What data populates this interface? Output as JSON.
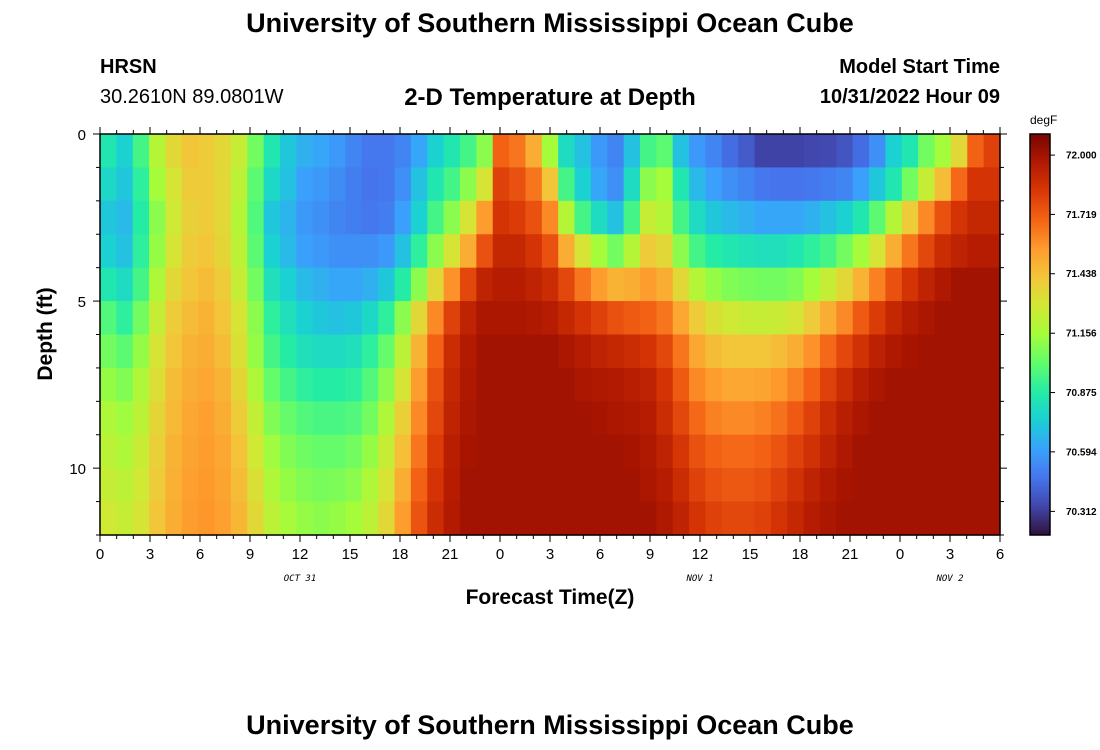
{
  "header": {
    "title": "University of Southern Mississippi Ocean Cube",
    "station": "HRSN",
    "coordinates": "30.2610N  89.0801W",
    "plot_title": "2-D Temperature at Depth",
    "model_start_label": "Model Start Time",
    "model_start_value": "10/31/2022 Hour 09"
  },
  "footer": {
    "title": "University of Southern Mississippi Ocean Cube"
  },
  "chart_data": {
    "type": "heatmap",
    "title": "2-D Temperature at Depth",
    "xlabel": "Forecast Time(Z)",
    "ylabel": "Depth (ft)",
    "x_tick_labels": [
      "0",
      "3",
      "6",
      "9",
      "12",
      "15",
      "18",
      "21",
      "0",
      "3",
      "6",
      "9",
      "12",
      "15",
      "18",
      "21",
      "0",
      "3",
      "6"
    ],
    "date_labels": [
      "OCT 31",
      "NOV 1",
      "NOV 2"
    ],
    "y_tick_labels": [
      "0",
      "5",
      "10"
    ],
    "ylim": [
      0,
      12
    ],
    "colorbar": {
      "unit": "degF",
      "ticks": [
        "72.000",
        "71.719",
        "71.438",
        "71.156",
        "70.875",
        "70.594",
        "70.312"
      ],
      "min": 70.2,
      "max": 72.1,
      "colors": [
        "#30123b",
        "#4145ab",
        "#4675ed",
        "#39a2fc",
        "#1bcfd4",
        "#24eca6",
        "#61fc6c",
        "#a4fc3b",
        "#d1e834",
        "#f3c63a",
        "#fe9b2d",
        "#f36315",
        "#d93806",
        "#b11901",
        "#7a0402"
      ]
    },
    "x_hours": [
      0,
      1,
      2,
      3,
      4,
      5,
      6,
      7,
      8,
      9,
      10,
      11,
      12,
      13,
      14,
      15,
      16,
      17,
      18,
      19,
      20,
      21,
      22,
      23,
      24,
      25,
      26,
      27,
      28,
      29,
      30,
      31,
      32,
      33,
      34,
      35,
      36,
      37,
      38,
      39,
      40,
      41,
      42,
      43,
      44,
      45,
      46,
      47,
      48,
      49,
      50,
      51,
      52,
      53,
      54
    ],
    "depths_ft": [
      0.5,
      1.5,
      2.5,
      3.5,
      4.5,
      5.5,
      6.5,
      7.5,
      8.5,
      9.5,
      10.5,
      11.5
    ],
    "values": [
      [
        70.85,
        70.75,
        70.95,
        71.2,
        71.35,
        71.42,
        71.4,
        71.35,
        71.25,
        71.05,
        70.85,
        70.72,
        70.65,
        70.62,
        70.58,
        70.52,
        70.48,
        70.48,
        70.52,
        70.62,
        70.75,
        70.85,
        70.95,
        71.1,
        71.7,
        71.65,
        71.5,
        71.15,
        70.8,
        70.7,
        70.58,
        70.52,
        70.7,
        70.95,
        71.0,
        70.7,
        70.58,
        70.52,
        70.45,
        70.4,
        70.33,
        70.33,
        70.33,
        70.34,
        70.35,
        70.38,
        70.45,
        70.55,
        70.75,
        70.85,
        71.05,
        71.15,
        71.35,
        71.7,
        71.8
      ],
      [
        70.78,
        70.72,
        70.9,
        71.15,
        71.3,
        71.4,
        71.4,
        71.35,
        71.22,
        71.0,
        70.78,
        70.7,
        70.6,
        70.58,
        70.54,
        70.5,
        70.47,
        70.48,
        70.55,
        70.7,
        70.85,
        70.95,
        71.1,
        71.3,
        71.8,
        71.75,
        71.65,
        71.42,
        70.95,
        70.75,
        70.62,
        70.55,
        70.8,
        71.1,
        71.15,
        70.85,
        70.68,
        70.6,
        70.55,
        70.52,
        70.48,
        70.47,
        70.47,
        70.48,
        70.5,
        70.52,
        70.6,
        70.72,
        70.85,
        71.05,
        71.25,
        71.45,
        71.68,
        71.85,
        71.85
      ],
      [
        70.72,
        70.68,
        70.88,
        71.1,
        71.28,
        71.38,
        71.4,
        71.35,
        71.2,
        70.98,
        70.72,
        70.66,
        70.58,
        70.55,
        70.52,
        70.5,
        70.48,
        70.5,
        70.6,
        70.75,
        70.95,
        71.1,
        71.3,
        71.55,
        71.85,
        71.82,
        71.75,
        71.6,
        71.2,
        70.95,
        70.8,
        70.7,
        70.95,
        71.25,
        71.2,
        70.95,
        70.8,
        70.72,
        70.68,
        70.65,
        70.62,
        70.62,
        70.62,
        70.65,
        70.7,
        70.75,
        70.85,
        71.0,
        71.2,
        71.4,
        71.6,
        71.75,
        71.85,
        71.9,
        71.9
      ],
      [
        70.75,
        70.7,
        70.9,
        71.12,
        71.3,
        71.4,
        71.42,
        71.36,
        71.22,
        71.0,
        70.75,
        70.68,
        70.6,
        70.58,
        70.55,
        70.55,
        70.55,
        70.58,
        70.7,
        70.9,
        71.1,
        71.3,
        71.5,
        71.75,
        71.9,
        71.9,
        71.85,
        71.75,
        71.5,
        71.3,
        71.15,
        71.05,
        71.2,
        71.4,
        71.35,
        71.1,
        70.95,
        70.88,
        70.85,
        70.83,
        70.82,
        70.82,
        70.85,
        70.9,
        70.95,
        71.05,
        71.15,
        71.3,
        71.5,
        71.65,
        71.78,
        71.88,
        71.92,
        71.95,
        71.95
      ],
      [
        70.85,
        70.8,
        70.95,
        71.18,
        71.35,
        71.42,
        71.45,
        71.4,
        71.25,
        71.05,
        70.82,
        70.75,
        70.68,
        70.65,
        70.62,
        70.62,
        70.65,
        70.72,
        70.88,
        71.1,
        71.35,
        71.58,
        71.78,
        71.92,
        71.95,
        71.95,
        71.92,
        71.88,
        71.78,
        71.65,
        71.55,
        71.48,
        71.5,
        71.55,
        71.5,
        71.35,
        71.2,
        71.12,
        71.08,
        71.06,
        71.05,
        71.05,
        71.08,
        71.15,
        71.25,
        71.35,
        71.48,
        71.62,
        71.75,
        71.85,
        71.92,
        71.97,
        72.0,
        72.0,
        72.0
      ],
      [
        70.98,
        70.9,
        71.05,
        71.25,
        71.4,
        71.45,
        71.48,
        71.42,
        71.3,
        71.1,
        70.9,
        70.82,
        70.75,
        70.72,
        70.7,
        70.72,
        70.78,
        70.9,
        71.1,
        71.35,
        71.6,
        71.8,
        71.92,
        71.98,
        71.98,
        71.98,
        71.97,
        71.95,
        71.9,
        71.85,
        71.8,
        71.75,
        71.72,
        71.7,
        71.65,
        71.52,
        71.4,
        71.32,
        71.28,
        71.26,
        71.25,
        71.26,
        71.3,
        71.4,
        71.5,
        71.6,
        71.72,
        71.82,
        71.9,
        71.95,
        71.98,
        72.0,
        72.0,
        72.0,
        72.0
      ],
      [
        71.05,
        71.0,
        71.12,
        71.3,
        71.42,
        71.48,
        71.5,
        71.45,
        71.32,
        71.12,
        70.95,
        70.88,
        70.82,
        70.8,
        70.8,
        70.82,
        70.9,
        71.02,
        71.22,
        71.48,
        71.7,
        71.88,
        71.96,
        72.0,
        72.0,
        72.0,
        72.0,
        72.0,
        71.98,
        71.95,
        71.92,
        71.9,
        71.88,
        71.85,
        71.78,
        71.65,
        71.52,
        71.45,
        71.42,
        71.42,
        71.42,
        71.45,
        71.5,
        71.58,
        71.68,
        71.78,
        71.86,
        71.93,
        71.97,
        71.99,
        72.0,
        72.0,
        72.0,
        72.0,
        72.0
      ],
      [
        71.12,
        71.08,
        71.18,
        71.33,
        71.45,
        71.5,
        71.52,
        71.48,
        71.36,
        71.18,
        71.02,
        70.95,
        70.9,
        70.88,
        70.88,
        70.9,
        70.98,
        71.1,
        71.3,
        71.55,
        71.75,
        71.9,
        71.97,
        72.0,
        72.0,
        72.0,
        72.0,
        72.0,
        72.0,
        71.98,
        71.97,
        71.96,
        71.94,
        71.92,
        71.85,
        71.72,
        71.6,
        71.55,
        71.52,
        71.52,
        71.53,
        71.56,
        71.62,
        71.7,
        71.8,
        71.88,
        71.94,
        71.98,
        72.0,
        72.0,
        72.0,
        72.0,
        72.0,
        72.0,
        72.0
      ],
      [
        71.18,
        71.14,
        71.22,
        71.36,
        71.46,
        71.52,
        71.54,
        71.5,
        71.4,
        71.24,
        71.08,
        71.02,
        70.98,
        70.96,
        70.96,
        70.98,
        71.05,
        71.18,
        71.38,
        71.6,
        71.78,
        71.92,
        71.98,
        72.0,
        72.0,
        72.0,
        72.0,
        72.0,
        72.0,
        72.0,
        71.99,
        71.98,
        71.97,
        71.95,
        71.88,
        71.78,
        71.68,
        71.62,
        71.6,
        71.6,
        71.62,
        71.66,
        71.72,
        71.8,
        71.88,
        71.94,
        71.98,
        72.0,
        72.0,
        72.0,
        72.0,
        72.0,
        72.0,
        72.0,
        72.0
      ],
      [
        71.22,
        71.18,
        71.26,
        71.38,
        71.48,
        71.53,
        71.55,
        71.52,
        71.43,
        71.28,
        71.14,
        71.08,
        71.04,
        71.02,
        71.02,
        71.05,
        71.12,
        71.25,
        71.44,
        71.65,
        71.82,
        71.94,
        71.99,
        72.0,
        72.0,
        72.0,
        72.0,
        72.0,
        72.0,
        72.0,
        72.0,
        72.0,
        71.99,
        71.97,
        71.92,
        71.84,
        71.75,
        71.7,
        71.68,
        71.68,
        71.7,
        71.74,
        71.8,
        71.86,
        71.92,
        71.97,
        72.0,
        72.0,
        72.0,
        72.0,
        72.0,
        72.0,
        72.0,
        72.0,
        72.0
      ],
      [
        71.25,
        71.22,
        71.28,
        71.4,
        71.49,
        71.54,
        71.56,
        71.53,
        71.45,
        71.32,
        71.18,
        71.12,
        71.08,
        71.06,
        71.07,
        71.1,
        71.18,
        71.3,
        71.5,
        71.7,
        71.85,
        71.95,
        72.0,
        72.0,
        72.0,
        72.0,
        72.0,
        72.0,
        72.0,
        72.0,
        72.0,
        72.0,
        72.0,
        71.98,
        71.95,
        71.88,
        71.8,
        71.75,
        71.73,
        71.73,
        71.75,
        71.8,
        71.86,
        71.92,
        71.96,
        71.99,
        72.0,
        72.0,
        72.0,
        72.0,
        72.0,
        72.0,
        72.0,
        72.0,
        72.0
      ],
      [
        71.28,
        71.25,
        71.3,
        71.42,
        71.5,
        71.55,
        71.57,
        71.54,
        71.47,
        71.35,
        71.22,
        71.16,
        71.12,
        71.1,
        71.12,
        71.15,
        71.22,
        71.35,
        71.55,
        71.74,
        71.88,
        71.96,
        72.0,
        72.0,
        72.0,
        72.0,
        72.0,
        72.0,
        72.0,
        72.0,
        72.0,
        72.0,
        72.0,
        72.0,
        71.97,
        71.92,
        71.85,
        71.8,
        71.78,
        71.78,
        71.8,
        71.85,
        71.9,
        71.95,
        71.98,
        72.0,
        72.0,
        72.0,
        72.0,
        72.0,
        72.0,
        72.0,
        72.0,
        72.0,
        72.0
      ]
    ]
  }
}
